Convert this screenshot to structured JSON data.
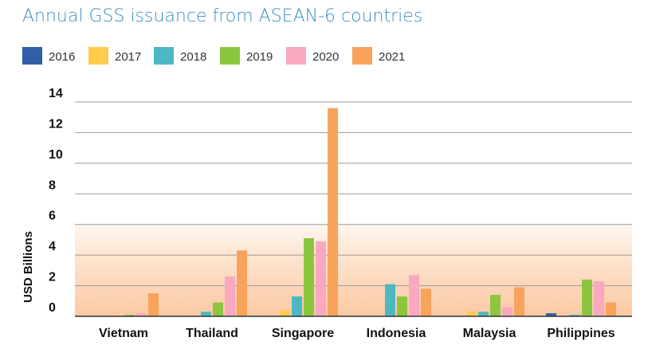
{
  "chart_data": {
    "type": "bar",
    "title": "Annual GSS issuance from ASEAN-6 countries",
    "xlabel": "",
    "ylabel": "USD Billions",
    "ylim": [
      0,
      14
    ],
    "yticks": [
      "0",
      "2",
      "4",
      "6",
      "8",
      "10",
      "12",
      "14"
    ],
    "grid": true,
    "legend_position": "top-left",
    "categories": [
      "Vietnam",
      "Thailand",
      "Singapore",
      "Indonesia",
      "Malaysia",
      "Philippines"
    ],
    "series": [
      {
        "name": "2016",
        "color": "#2f5fa8",
        "values": [
          0.0,
          0.0,
          0.0,
          0.0,
          0.0,
          0.2
        ]
      },
      {
        "name": "2017",
        "color": "#ffcc4d",
        "values": [
          0.0,
          0.0,
          0.4,
          0.0,
          0.3,
          0.0
        ]
      },
      {
        "name": "2018",
        "color": "#4db8c2",
        "values": [
          0.0,
          0.3,
          1.3,
          2.1,
          0.3,
          0.1
        ]
      },
      {
        "name": "2019",
        "color": "#8cc63f",
        "values": [
          0.1,
          0.9,
          5.1,
          1.3,
          1.4,
          2.4
        ]
      },
      {
        "name": "2020",
        "color": "#f9a8bf",
        "values": [
          0.2,
          2.6,
          4.9,
          2.7,
          0.6,
          2.3
        ]
      },
      {
        "name": "2021",
        "color": "#f7a35c",
        "values": [
          1.5,
          4.3,
          13.6,
          1.8,
          1.9,
          0.9
        ]
      }
    ],
    "colors": {
      "title": "#3d8fb8",
      "grid": "#999999",
      "axis": "#333333",
      "band_top": "#fff6ef",
      "band_mid": "#fde2cc",
      "band_bottom": "#fbc9a3"
    }
  }
}
